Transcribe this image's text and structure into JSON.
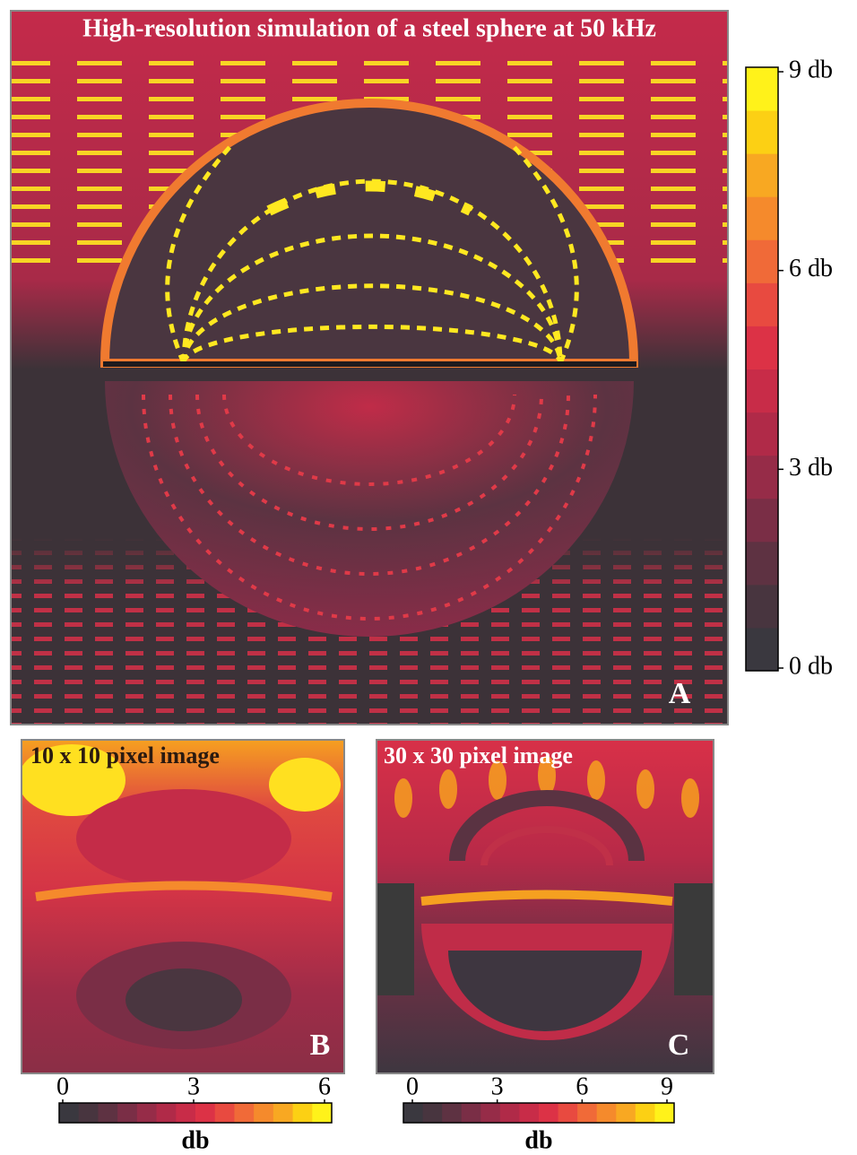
{
  "chart_data": [
    {
      "type": "heatmap",
      "title": "High-resolution simulation of a steel sphere at 50 kHz",
      "panel_label": "A",
      "clim": [
        0,
        9
      ],
      "cticks": [
        {
          "value": 0,
          "label": "0 db"
        },
        {
          "value": 3,
          "label": "3 db"
        },
        {
          "value": 6,
          "label": "6 db"
        },
        {
          "value": 9,
          "label": "9 db"
        }
      ],
      "colormap": [
        "#3a383f",
        "#48353f",
        "#5e3242",
        "#7a2e46",
        "#962c48",
        "#b02a48",
        "#c82c48",
        "#dc3246",
        "#e84a40",
        "#f06a38",
        "#f58a2c",
        "#f8a822",
        "#fcd014",
        "#fff21a"
      ]
    },
    {
      "type": "heatmap",
      "title": "10 x 10 pixel image",
      "panel_label": "B",
      "clim": [
        0,
        6
      ],
      "cticks": [
        0,
        3,
        6
      ],
      "clabel": "db",
      "colormap": [
        "#3a383f",
        "#48353f",
        "#5e3242",
        "#7a2e46",
        "#962c48",
        "#b02a48",
        "#c82c48",
        "#dc3246",
        "#e84a40",
        "#f06a38",
        "#f58a2c",
        "#f8a822",
        "#fcd014",
        "#fff21a"
      ]
    },
    {
      "type": "heatmap",
      "title": "30 x 30 pixel image",
      "panel_label": "C",
      "clim": [
        0,
        9
      ],
      "cticks": [
        0,
        3,
        6,
        9
      ],
      "clabel": "db",
      "colormap": [
        "#3a383f",
        "#48353f",
        "#5e3242",
        "#7a2e46",
        "#962c48",
        "#b02a48",
        "#c82c48",
        "#dc3246",
        "#e84a40",
        "#f06a38",
        "#f58a2c",
        "#f8a822",
        "#fcd014",
        "#fff21a"
      ]
    }
  ]
}
